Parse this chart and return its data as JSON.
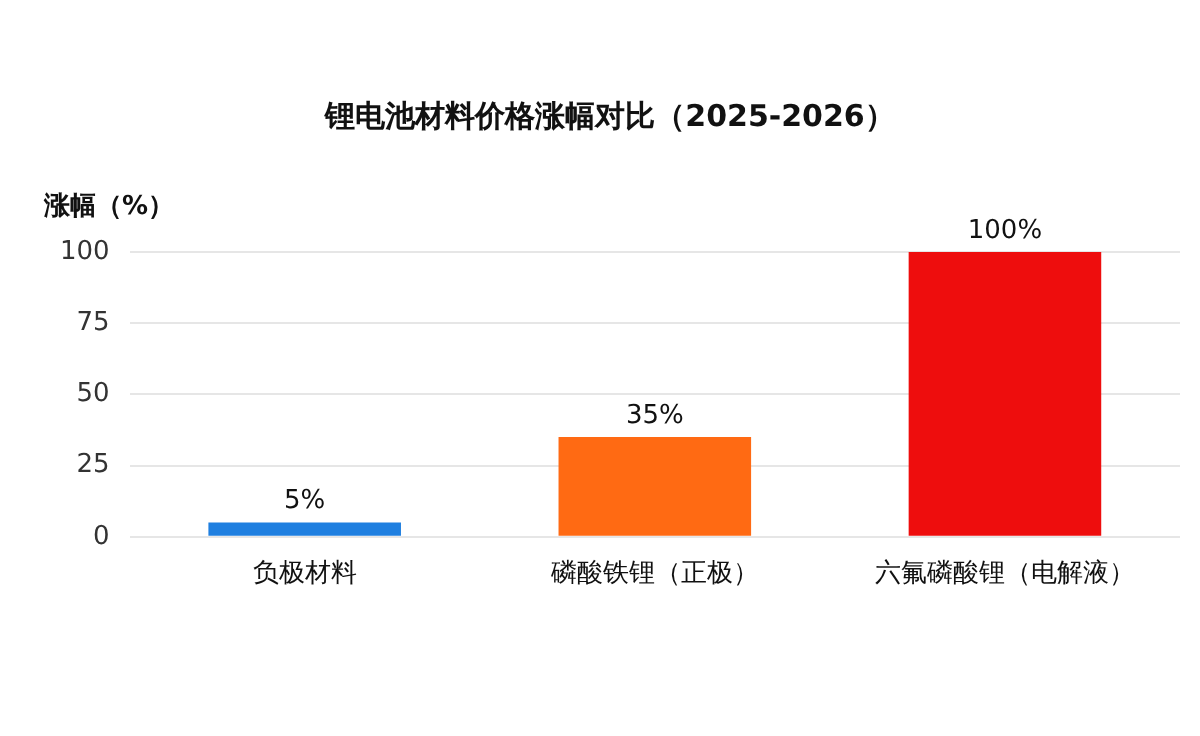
{
  "chart_data": {
    "type": "bar",
    "title": "锂电池材料价格涨幅对比（2025-2026）",
    "ylabel": "涨幅（%）",
    "categories": [
      "负极材料",
      "磷酸铁锂（正极）",
      "六氟磷酸锂（电解液）"
    ],
    "values": [
      5,
      35,
      100
    ],
    "colors": [
      "#1f7fe0",
      "#ff6a13",
      "#ee0d0d"
    ],
    "value_labels": [
      "5%",
      "35%",
      "100%"
    ],
    "ylim": [
      0,
      100
    ],
    "yticks": [
      0,
      25,
      50,
      75,
      100
    ],
    "grid": "y",
    "legend": false
  }
}
